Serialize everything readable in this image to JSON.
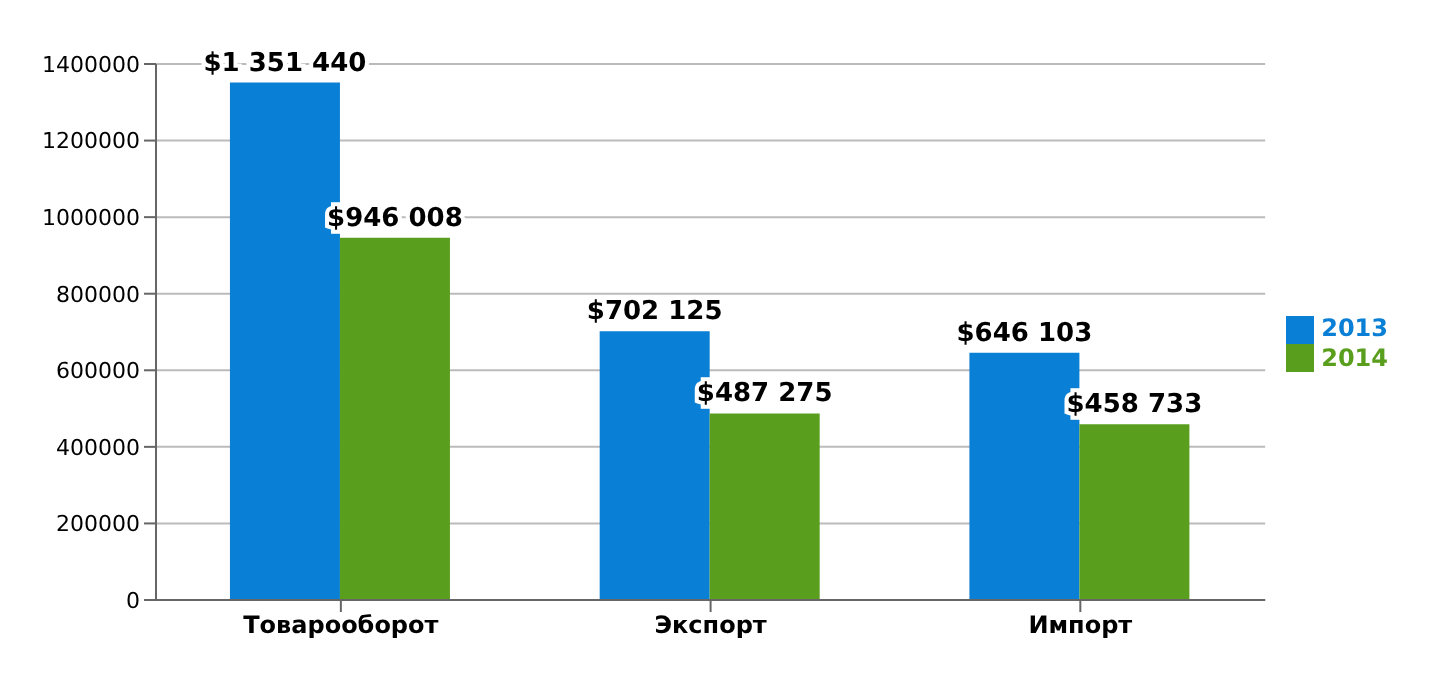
{
  "chart_data": {
    "type": "bar",
    "categories": [
      "Товарооборот",
      "Экспорт",
      "Импорт"
    ],
    "series": [
      {
        "name": "2013",
        "color": "#0a7fd6",
        "values": [
          1351440,
          702125,
          646103
        ],
        "value_labels": [
          "$1 351 440",
          "$702 125",
          "$646 103"
        ]
      },
      {
        "name": "2014",
        "color": "#5a9e1e",
        "values": [
          946008,
          487275,
          458733
        ],
        "value_labels": [
          "$946 008",
          "$487 275",
          "$458 733"
        ]
      }
    ],
    "ylim": [
      0,
      1400000
    ],
    "yticks": [
      0,
      200000,
      400000,
      600000,
      800000,
      1000000,
      1200000,
      1400000
    ],
    "grid": "y",
    "legend": "right"
  }
}
